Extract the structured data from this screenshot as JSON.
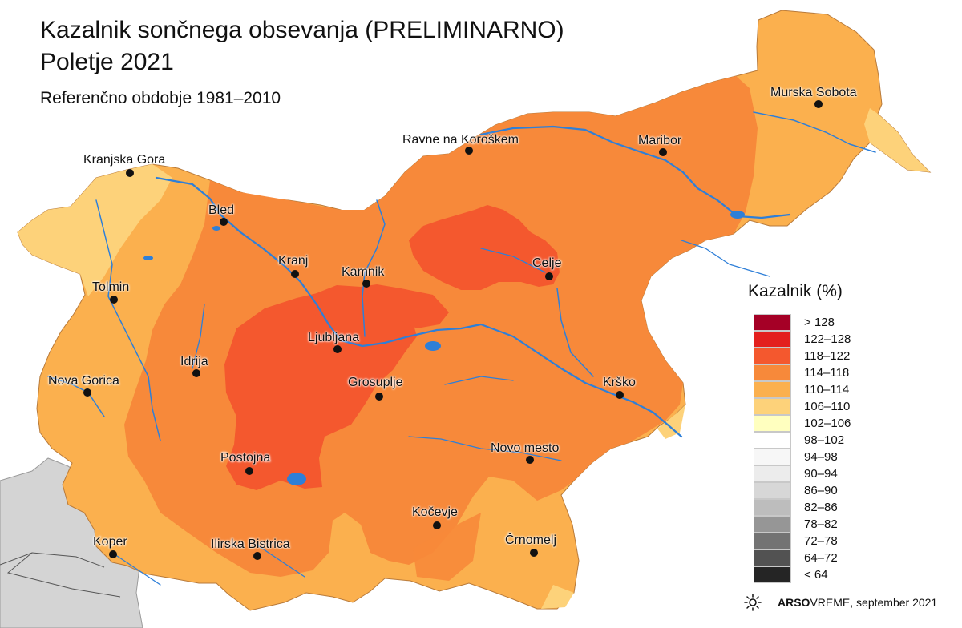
{
  "title": "Kazalnik sončnega obsevanja (PRELIMINARNO)",
  "subtitle": "Poletje 2021",
  "reference_period": "Referenčno obdobje 1981–2010",
  "legend": {
    "title": "Kazalnik (%)",
    "classes": [
      {
        "label": "> 128",
        "color": "#a50026"
      },
      {
        "label": "122–128",
        "color": "#e3201e"
      },
      {
        "label": "118–122",
        "color": "#f4582e"
      },
      {
        "label": "114–118",
        "color": "#f7893a"
      },
      {
        "label": "110–114",
        "color": "#fbb04e"
      },
      {
        "label": "106–110",
        "color": "#fdd27a"
      },
      {
        "label": "102–106",
        "color": "#ffffbf"
      },
      {
        "label": "98–102",
        "color": "#ffffff"
      },
      {
        "label": "94–98",
        "color": "#f7f7f7"
      },
      {
        "label": "90–94",
        "color": "#ececec"
      },
      {
        "label": "86–90",
        "color": "#d7d7d7"
      },
      {
        "label": "82–86",
        "color": "#bdbdbd"
      },
      {
        "label": "78–82",
        "color": "#969696"
      },
      {
        "label": "72–78",
        "color": "#737373"
      },
      {
        "label": "64–72",
        "color": "#525252"
      },
      {
        "label": "< 64",
        "color": "#252525"
      }
    ]
  },
  "cities": [
    {
      "name": "Murska Sobota"
    },
    {
      "name": "Ravne na Koroškem"
    },
    {
      "name": "Maribor"
    },
    {
      "name": "Kranjska Gora"
    },
    {
      "name": "Bled"
    },
    {
      "name": "Kranj"
    },
    {
      "name": "Kamnik"
    },
    {
      "name": "Celje"
    },
    {
      "name": "Tolmin"
    },
    {
      "name": "Ljubljana"
    },
    {
      "name": "Idrija"
    },
    {
      "name": "Nova Gorica"
    },
    {
      "name": "Grosuplje"
    },
    {
      "name": "Krško"
    },
    {
      "name": "Novo mesto"
    },
    {
      "name": "Postojna"
    },
    {
      "name": "Kočevje"
    },
    {
      "name": "Koper"
    },
    {
      "name": "Ilirska Bistrica"
    },
    {
      "name": "Črnomelj"
    }
  ],
  "footer": {
    "logo_icon": "sun-icon",
    "brand_bold": "ARSO",
    "brand_regular": " VREME",
    "date_text": ", september 2021"
  }
}
